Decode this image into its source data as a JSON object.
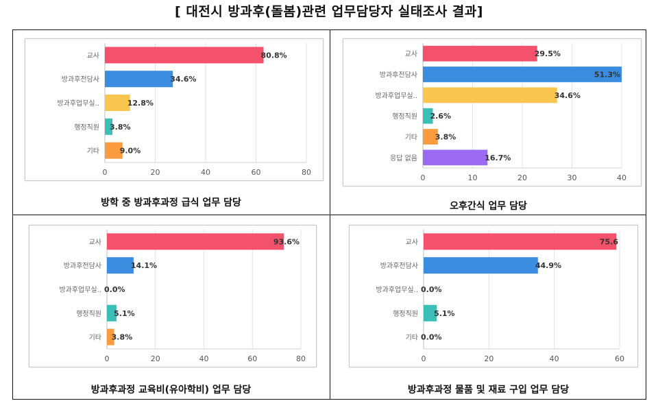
{
  "title": "[ 대전시 방과후(돌봄)관련 업무담당자 실태조사 결과]",
  "colors": {
    "teacher": "#f4516c",
    "afterschool_staff": "#3b8de0",
    "afterschool_room": "#f9c74f",
    "admin": "#3bbfb8",
    "other": "#f99b3e",
    "no_answer": "#9b6bf2"
  },
  "chart_data": [
    {
      "type": "bar",
      "orientation": "horizontal",
      "caption": "방학 중 방과후과정 급식 업무 담당",
      "categories": [
        "교사",
        "방과후전담사",
        "방과후업무실..",
        "행정직원",
        "기타"
      ],
      "values": [
        63,
        27,
        10,
        3,
        7
      ],
      "data_labels": [
        "80.8%",
        "34.6%",
        "12.8%",
        "3.8%",
        "9.0%"
      ],
      "xlim": [
        0,
        80
      ],
      "xticks": [
        0,
        20,
        40,
        60,
        80
      ]
    },
    {
      "type": "bar",
      "orientation": "horizontal",
      "caption": "오후간식 업무 담당",
      "categories": [
        "교사",
        "방과후전담사",
        "방과후업무실..",
        "행정직원",
        "기타",
        "응답 없음"
      ],
      "values": [
        23,
        40,
        27,
        2,
        3,
        13
      ],
      "data_labels": [
        "29.5%",
        "51.3%",
        "34.6%",
        "2.6%",
        "3.8%",
        "16.7%"
      ],
      "xlim": [
        0,
        40
      ],
      "xticks": [
        0,
        10,
        20,
        30,
        40
      ]
    },
    {
      "type": "bar",
      "orientation": "horizontal",
      "caption": "방과후과정 교육비(유아학비) 업무 담당",
      "categories": [
        "교사",
        "방과후전담사",
        "방과후업무실..",
        "행정직원",
        "기타"
      ],
      "values": [
        73,
        11,
        0,
        4,
        3
      ],
      "data_labels": [
        "93.6%",
        "14.1%",
        "0.0%",
        "5.1%",
        "3.8%"
      ],
      "xlim": [
        0,
        80
      ],
      "xticks": [
        0,
        20,
        40,
        60,
        80
      ]
    },
    {
      "type": "bar",
      "orientation": "horizontal",
      "caption": "방과후과정 물품 및 재료 구입 업무 담당",
      "categories": [
        "교사",
        "방과후전담사",
        "방과후업무실..",
        "행정직원",
        "기타"
      ],
      "values": [
        59,
        35,
        0,
        4,
        0
      ],
      "data_labels": [
        "75.6",
        "44.9%",
        "0.0%",
        "5.1%",
        "0.0%"
      ],
      "xlim": [
        0,
        60
      ],
      "xticks": [
        0,
        20,
        40,
        60
      ]
    }
  ]
}
